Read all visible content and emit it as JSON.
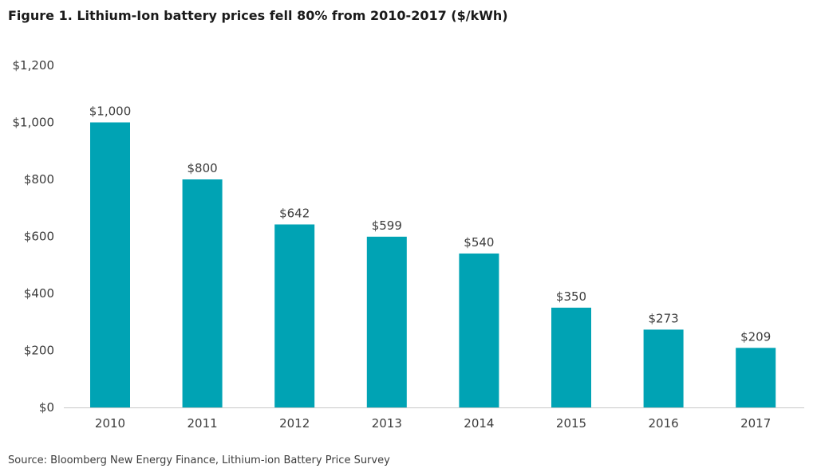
{
  "chart_data": {
    "type": "bar",
    "title": "Figure 1. Lithium-Ion battery prices fell 80% from 2010-2017 ($/kWh)",
    "xlabel": "",
    "ylabel": "",
    "categories": [
      "2010",
      "2011",
      "2012",
      "2013",
      "2014",
      "2015",
      "2016",
      "2017"
    ],
    "values": [
      1000,
      800,
      642,
      599,
      540,
      350,
      273,
      209
    ],
    "value_labels": [
      "$1,000",
      "$800",
      "$642",
      "$599",
      "$540",
      "$350",
      "$273",
      "$209"
    ],
    "ylim": [
      0,
      1200
    ],
    "yticks": [
      0,
      200,
      400,
      600,
      800,
      1000,
      1200
    ],
    "ytick_labels": [
      "$0",
      "$200",
      "$400",
      "$600",
      "$800",
      "$1,000",
      "$1,200"
    ],
    "grid": false,
    "bar_color": "#00a3b4",
    "source": "Source: Bloomberg New Energy Finance, Lithium-ion Battery Price Survey"
  }
}
